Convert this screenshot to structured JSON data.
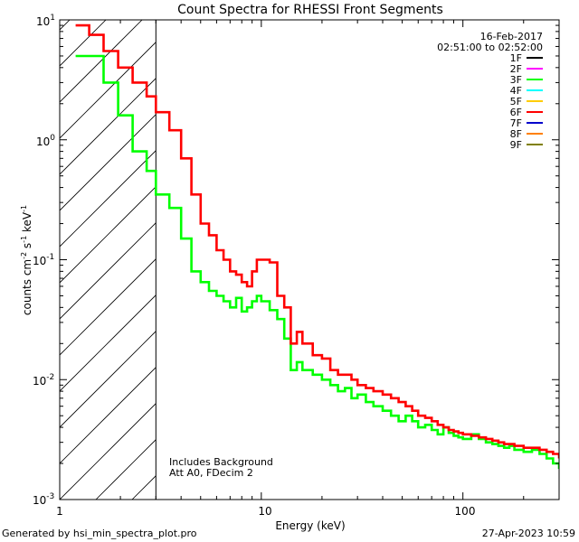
{
  "chart_data": {
    "type": "line",
    "title": "Count Spectra for RHESSI Front Segments",
    "xlabel": "Energy (keV)",
    "ylabel": "counts cm",
    "ylabel_sup1": "-2",
    "ylabel_mid": " s",
    "ylabel_sup2": "-1",
    "ylabel_end": " keV",
    "ylabel_sup3": "-1",
    "xscale": "log",
    "yscale": "log",
    "xlim": [
      1,
      300
    ],
    "ylim": [
      0.001,
      10
    ],
    "x_ticks": [
      {
        "v": 1,
        "label": "1"
      },
      {
        "v": 10,
        "label": "10"
      },
      {
        "v": 100,
        "label": "100"
      }
    ],
    "y_ticks": [
      {
        "v": 10,
        "base": "10",
        "exp": "1"
      },
      {
        "v": 1,
        "base": "10",
        "exp": "0"
      },
      {
        "v": 0.1,
        "base": "10",
        "exp": "-1"
      },
      {
        "v": 0.01,
        "base": "10",
        "exp": "-2"
      },
      {
        "v": 0.001,
        "base": "10",
        "exp": "-3"
      }
    ],
    "hatched_region": {
      "x_min": 1,
      "x_max": 3
    },
    "date": "16-Feb-2017",
    "time_range": "02:51:00 to 02:52:00",
    "annotations": [
      "Includes Background",
      "Att A0, FDecim 2"
    ],
    "legend": [
      {
        "name": "1F",
        "color": "#000000"
      },
      {
        "name": "2F",
        "color": "#ff00ff"
      },
      {
        "name": "3F",
        "color": "#00ff00"
      },
      {
        "name": "4F",
        "color": "#00ffff"
      },
      {
        "name": "5F",
        "color": "#ffcc00"
      },
      {
        "name": "6F",
        "color": "#ff0000"
      },
      {
        "name": "7F",
        "color": "#0000cc"
      },
      {
        "name": "8F",
        "color": "#ff8000"
      },
      {
        "name": "9F",
        "color": "#808000"
      }
    ],
    "series": [
      {
        "name": "3F",
        "color": "#00ff00",
        "x": [
          1.2,
          1.4,
          1.65,
          1.95,
          2.3,
          2.7,
          3.0,
          3.5,
          4.0,
          4.5,
          5.0,
          5.5,
          6.0,
          6.5,
          7.0,
          7.5,
          8.0,
          8.5,
          9.0,
          9.5,
          10,
          11,
          12,
          13,
          14,
          15,
          16,
          18,
          20,
          22,
          24,
          26,
          28,
          30,
          33,
          36,
          40,
          44,
          48,
          52,
          56,
          60,
          65,
          70,
          75,
          80,
          85,
          90,
          95,
          100,
          110,
          120,
          130,
          140,
          150,
          160,
          170,
          180,
          190,
          200,
          220,
          240,
          260,
          280,
          300
        ],
        "values": [
          5.0,
          5.0,
          3.0,
          1.6,
          0.8,
          0.55,
          0.35,
          0.27,
          0.15,
          0.08,
          0.065,
          0.055,
          0.05,
          0.045,
          0.04,
          0.048,
          0.037,
          0.04,
          0.045,
          0.05,
          0.045,
          0.038,
          0.032,
          0.022,
          0.012,
          0.014,
          0.012,
          0.011,
          0.01,
          0.009,
          0.008,
          0.0085,
          0.007,
          0.0075,
          0.0065,
          0.006,
          0.0055,
          0.005,
          0.0045,
          0.005,
          0.0045,
          0.004,
          0.0042,
          0.0038,
          0.0035,
          0.004,
          0.0036,
          0.0034,
          0.0033,
          0.0032,
          0.0035,
          0.0032,
          0.003,
          0.0029,
          0.0028,
          0.0027,
          0.0028,
          0.0026,
          0.0026,
          0.0025,
          0.0026,
          0.0024,
          0.0022,
          0.002,
          0.0018
        ]
      },
      {
        "name": "6F",
        "color": "#ff0000",
        "x": [
          1.2,
          1.4,
          1.65,
          1.95,
          2.3,
          2.7,
          3.0,
          3.5,
          4.0,
          4.5,
          5.0,
          5.5,
          6.0,
          6.5,
          7.0,
          7.5,
          8.0,
          8.5,
          9.0,
          9.5,
          10,
          11,
          12,
          13,
          14,
          15,
          16,
          18,
          20,
          22,
          24,
          26,
          28,
          30,
          33,
          36,
          40,
          44,
          48,
          52,
          56,
          60,
          65,
          70,
          75,
          80,
          85,
          90,
          95,
          100,
          110,
          120,
          130,
          140,
          150,
          160,
          170,
          180,
          190,
          200,
          220,
          240,
          260,
          280,
          300
        ],
        "values": [
          9.0,
          7.5,
          5.5,
          4.0,
          3.0,
          2.3,
          1.7,
          1.2,
          0.7,
          0.35,
          0.2,
          0.16,
          0.12,
          0.1,
          0.08,
          0.075,
          0.065,
          0.06,
          0.08,
          0.1,
          0.1,
          0.095,
          0.05,
          0.04,
          0.02,
          0.025,
          0.02,
          0.016,
          0.015,
          0.012,
          0.011,
          0.011,
          0.01,
          0.009,
          0.0085,
          0.008,
          0.0075,
          0.007,
          0.0065,
          0.006,
          0.0055,
          0.005,
          0.0048,
          0.0045,
          0.0042,
          0.004,
          0.0038,
          0.0037,
          0.0036,
          0.0035,
          0.0034,
          0.0033,
          0.0032,
          0.0031,
          0.003,
          0.0029,
          0.0029,
          0.0028,
          0.0028,
          0.0027,
          0.0027,
          0.0026,
          0.0025,
          0.0024,
          0.0022
        ]
      }
    ]
  },
  "footer": {
    "generated": "Generated by hsi_min_spectra_plot.pro",
    "timestamp": "27-Apr-2023 10:59"
  }
}
